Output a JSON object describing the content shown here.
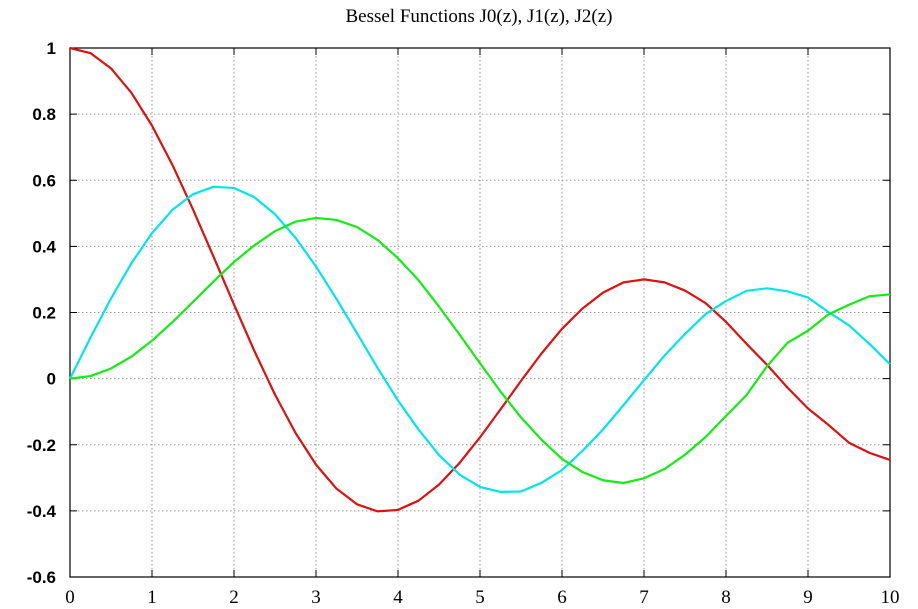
{
  "chart_data": {
    "type": "line",
    "title": "Bessel Functions  J0(z), J1(z), J2(z)",
    "xlabel": "",
    "ylabel": "",
    "xlim": [
      0,
      10
    ],
    "ylim": [
      -0.6,
      1
    ],
    "grid": true,
    "legend": "none",
    "x_ticks": [
      "0",
      "1",
      "2",
      "3",
      "4",
      "5",
      "6",
      "7",
      "8",
      "9",
      "10"
    ],
    "y_ticks": [
      "1",
      "0.8",
      "0.6",
      "0.4",
      "0.2",
      "0",
      "-0.2",
      "-0.4",
      "-0.6"
    ],
    "x": [
      0,
      0.25,
      0.5,
      0.75,
      1,
      1.25,
      1.5,
      1.75,
      2,
      2.25,
      2.5,
      2.75,
      3,
      3.25,
      3.5,
      3.75,
      4,
      4.25,
      4.5,
      4.75,
      5,
      5.25,
      5.5,
      5.75,
      6,
      6.25,
      6.5,
      6.75,
      7,
      7.25,
      7.5,
      7.75,
      8,
      8.25,
      8.5,
      8.75,
      9,
      9.25,
      9.5,
      9.75,
      10
    ],
    "series": [
      {
        "color": "#dd1111",
        "values": [
          1.0,
          0.9844,
          0.9385,
          0.8642,
          0.7652,
          0.6459,
          0.5118,
          0.369,
          0.2239,
          0.0827,
          -0.0484,
          -0.1641,
          -0.2601,
          -0.3328,
          -0.3801,
          -0.4014,
          -0.3971,
          -0.3692,
          -0.3205,
          -0.2551,
          -0.1776,
          -0.0931,
          -0.0068,
          0.076,
          0.1506,
          0.2122,
          0.2601,
          0.2911,
          0.3001,
          0.2911,
          0.2663,
          0.2284,
          0.1717,
          0.1053,
          0.0419,
          -0.0272,
          -0.0903,
          -0.14,
          -0.1939,
          -0.2246,
          -0.2459
        ]
      },
      {
        "color": "#00e6e6",
        "values": [
          0.0,
          0.124,
          0.2423,
          0.3492,
          0.4401,
          0.5106,
          0.5579,
          0.5802,
          0.5767,
          0.5484,
          0.4971,
          0.426,
          0.3391,
          0.2411,
          0.1374,
          0.0327,
          -0.066,
          -0.1537,
          -0.2311,
          -0.29,
          -0.3276,
          -0.3426,
          -0.3414,
          -0.3151,
          -0.2767,
          -0.2185,
          -0.1538,
          -0.0802,
          -0.0047,
          0.0697,
          0.1352,
          0.1948,
          0.2346,
          0.2656,
          0.2731,
          0.264,
          0.2453,
          0.2011,
          0.1613,
          0.105,
          0.0435
        ]
      },
      {
        "color": "#11ee11",
        "values": [
          0.0,
          0.0078,
          0.0306,
          0.0667,
          0.1149,
          0.1711,
          0.2321,
          0.2935,
          0.3528,
          0.4036,
          0.4461,
          0.4747,
          0.4861,
          0.48,
          0.4586,
          0.4196,
          0.3641,
          0.2978,
          0.2178,
          0.1335,
          0.0466,
          -0.039,
          -0.1173,
          -0.1848,
          -0.2429,
          -0.2825,
          -0.3074,
          -0.3157,
          -0.3014,
          -0.2735,
          -0.2303,
          -0.1769,
          -0.113,
          -0.0499,
          0.0373,
          0.1084,
          0.1448,
          0.1945,
          0.2235,
          0.2491,
          0.2546
        ]
      }
    ]
  }
}
